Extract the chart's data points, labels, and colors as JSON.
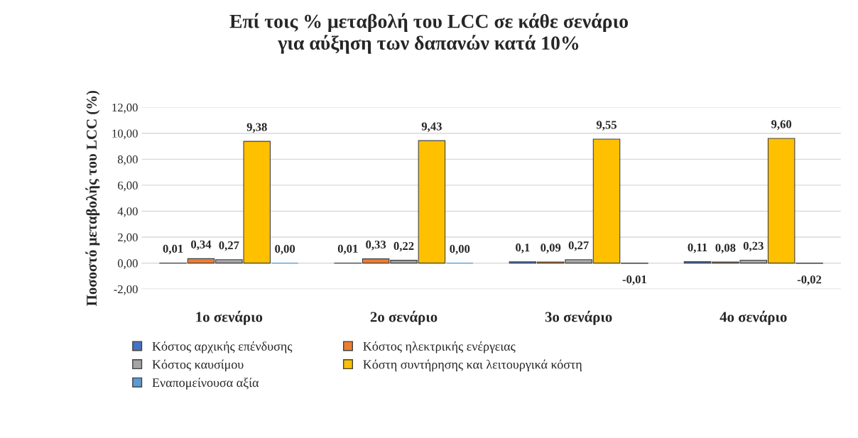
{
  "chart_data": {
    "type": "bar",
    "title": "Επί τοις % μεταβολή του LCC σε κάθε σενάριο\nγια αύξηση των δαπανών κατά 10%",
    "ylabel": "Ποσοστό μεταβολής του LCC (%)",
    "categories": [
      "1ο σενάριο",
      "2ο σενάριο",
      "3ο σενάριο",
      "4ο σενάριο"
    ],
    "series": [
      {
        "name": "Κόστος αρχικής επένδυσης",
        "color": "#4472c4",
        "values": [
          0.01,
          0.01,
          0.1,
          0.11
        ],
        "value_labels": [
          "0,01",
          "0,01",
          "0,1",
          "0,11"
        ]
      },
      {
        "name": "Κόστος ηλεκτρικής ενέργειας",
        "color": "#ed7d31",
        "values": [
          0.34,
          0.33,
          0.09,
          0.08
        ],
        "value_labels": [
          "0,34",
          "0,33",
          "0,09",
          "0,08"
        ]
      },
      {
        "name": "Κόστος καυσίμου",
        "color": "#a5a5a5",
        "values": [
          0.27,
          0.22,
          0.27,
          0.23
        ],
        "value_labels": [
          "0,27",
          "0,22",
          "0,27",
          "0,23"
        ]
      },
      {
        "name": "Κόστη συντήρησης και λειτουργικά κόστη",
        "color": "#ffc000",
        "values": [
          9.38,
          9.43,
          9.55,
          9.6
        ],
        "value_labels": [
          "9,38",
          "9,43",
          "9,55",
          "9,60"
        ]
      },
      {
        "name": "Εναπομείνουσα αξία",
        "color": "#5b9bd5",
        "values": [
          0.0,
          0.0,
          -0.01,
          -0.02
        ],
        "value_labels": [
          "0,00",
          "0,00",
          "-0,01",
          "-0,02"
        ]
      }
    ],
    "ylim": [
      -2,
      12
    ],
    "yticks": [
      {
        "value": -2,
        "label": "-2,00"
      },
      {
        "value": 0,
        "label": "0,00"
      },
      {
        "value": 2,
        "label": "2,00"
      },
      {
        "value": 4,
        "label": "4,00"
      },
      {
        "value": 6,
        "label": "6,00"
      },
      {
        "value": 8,
        "label": "8,00"
      },
      {
        "value": 10,
        "label": "10,00"
      },
      {
        "value": 12,
        "label": "12,00"
      }
    ],
    "grid": "y",
    "legend": "bottom"
  }
}
